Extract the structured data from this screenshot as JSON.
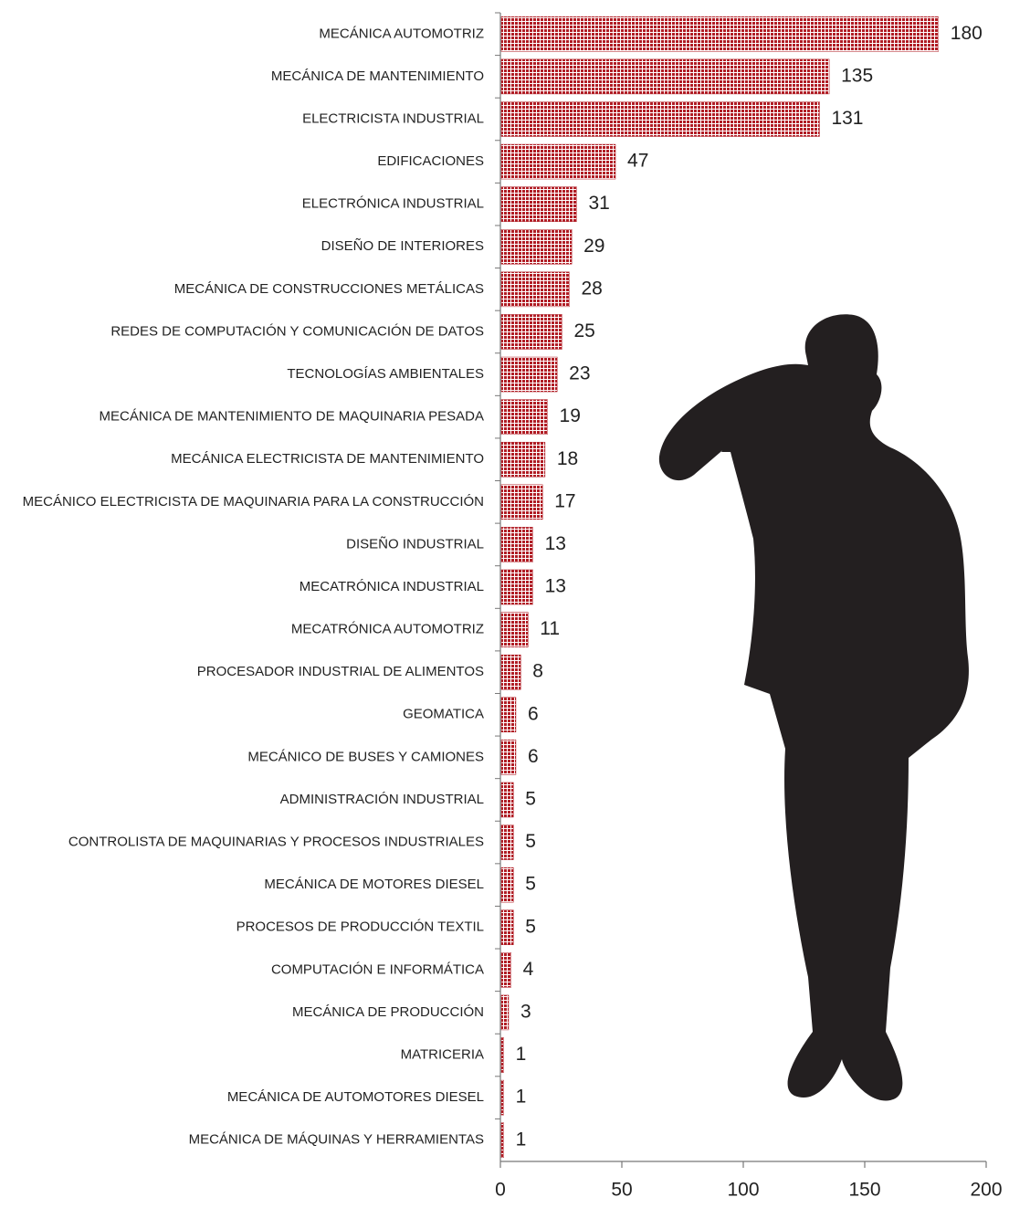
{
  "chart_data": {
    "type": "barh",
    "categories": [
      "MECÁNICA AUTOMOTRIZ",
      "MECÁNICA DE MANTENIMIENTO",
      "ELECTRICISTA INDUSTRIAL",
      "EDIFICACIONES",
      "ELECTRÓNICA INDUSTRIAL",
      "DISEÑO DE INTERIORES",
      "MECÁNICA DE CONSTRUCCIONES METÁLICAS",
      "REDES DE COMPUTACIÓN Y COMUNICACIÓN DE DATOS",
      "TECNOLOGÍAS AMBIENTALES",
      "MECÁNICA DE MANTENIMIENTO DE MAQUINARIA PESADA",
      "MECÁNICA ELECTRICISTA DE MANTENIMIENTO",
      "MECÁNICO ELECTRICISTA DE MAQUINARIA PARA LA CONSTRUCCIÓN",
      "DISEÑO INDUSTRIAL",
      "MECATRÓNICA INDUSTRIAL",
      "MECATRÓNICA AUTOMOTRIZ",
      "PROCESADOR INDUSTRIAL DE ALIMENTOS",
      "GEOMATICA",
      "MECÁNICO DE BUSES Y CAMIONES",
      "ADMINISTRACIÓN INDUSTRIAL",
      "CONTROLISTA DE MAQUINARIAS Y PROCESOS INDUSTRIALES",
      "MECÁNICA DE MOTORES DIESEL",
      "PROCESOS DE PRODUCCIÓN TEXTIL",
      "COMPUTACIÓN E INFORMÁTICA",
      "MECÁNICA DE PRODUCCIÓN",
      "MATRICERIA",
      "MECÁNICA DE AUTOMOTORES DIESEL",
      "MECÁNICA DE MÁQUINAS Y HERRAMIENTAS"
    ],
    "values": [
      180,
      135,
      131,
      47,
      31,
      29,
      28,
      25,
      23,
      19,
      18,
      17,
      13,
      13,
      11,
      8,
      6,
      6,
      5,
      5,
      5,
      5,
      4,
      3,
      1,
      1,
      1
    ],
    "color": "#b01c24",
    "xlim": [
      0,
      200
    ],
    "xticks": [
      0,
      50,
      100,
      150,
      200
    ]
  }
}
